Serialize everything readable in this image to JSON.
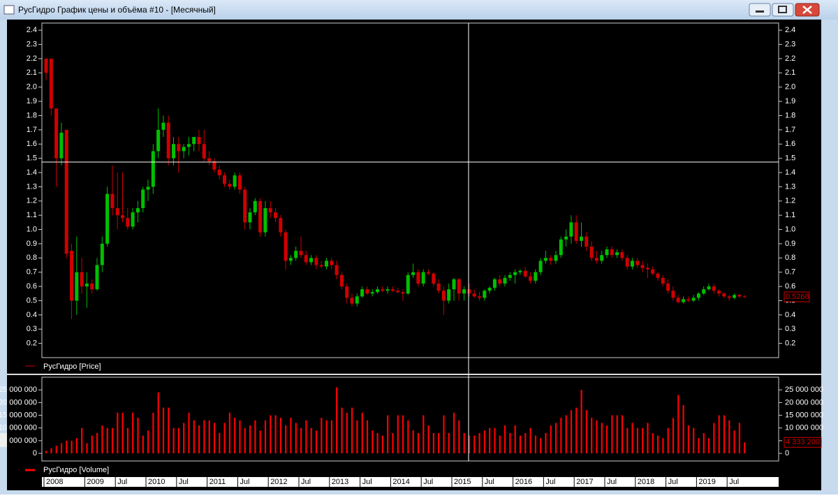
{
  "chart_data": {
    "type": "candlestick",
    "title": "РусГидро График цены и объёма #10 - [Месячный]",
    "price_legend": "РусГидро [Price]",
    "up_color": "#00c000",
    "down_color": "#d00000",
    "ylim": [
      0.1,
      2.45
    ],
    "yticks": [
      0.2,
      0.3,
      0.4,
      0.5,
      0.6,
      0.7,
      0.8,
      0.9,
      {
        "value": 1.0,
        "label": "1.0"
      },
      1.1,
      1.2,
      1.3,
      1.4,
      1.5,
      1.6,
      1.7,
      1.8,
      1.9,
      {
        "value": 2.0,
        "label": "2.0"
      },
      2.1,
      2.2,
      2.3,
      2.4
    ],
    "categories": [
      "2008",
      null,
      null,
      null,
      null,
      null,
      null,
      null,
      "2009",
      null,
      null,
      null,
      null,
      null,
      "Jul",
      null,
      null,
      null,
      null,
      null,
      "2010",
      null,
      null,
      null,
      null,
      null,
      "Jul",
      null,
      null,
      null,
      null,
      null,
      "2011",
      null,
      null,
      null,
      null,
      null,
      "Jul",
      null,
      null,
      null,
      null,
      null,
      "2012",
      null,
      null,
      null,
      null,
      null,
      "Jul",
      null,
      null,
      null,
      null,
      null,
      "2013",
      null,
      null,
      null,
      null,
      null,
      "Jul",
      null,
      null,
      null,
      null,
      null,
      "2014",
      null,
      null,
      null,
      null,
      null,
      "Jul",
      null,
      null,
      null,
      null,
      null,
      "2015",
      null,
      null,
      null,
      null,
      null,
      "Jul",
      null,
      null,
      null,
      null,
      null,
      "2016",
      null,
      null,
      null,
      null,
      null,
      "Jul",
      null,
      null,
      null,
      null,
      null,
      "2017",
      null,
      null,
      null,
      null,
      null,
      "Jul",
      null,
      null,
      null,
      null,
      null,
      "2018",
      null,
      null,
      null,
      null,
      null,
      "Jul",
      null,
      null,
      null,
      null,
      null,
      "2019",
      null,
      null,
      null,
      null,
      null,
      "Jul",
      null,
      null,
      null
    ],
    "ohlc": [
      [
        2.2,
        2.2,
        2.05,
        2.1
      ],
      [
        2.2,
        2.2,
        1.8,
        1.85
      ],
      [
        1.85,
        1.85,
        1.3,
        1.5
      ],
      [
        1.5,
        1.75,
        1.45,
        1.68
      ],
      [
        1.7,
        1.7,
        0.8,
        0.83
      ],
      [
        0.85,
        0.9,
        0.37,
        0.5
      ],
      [
        0.5,
        0.95,
        0.4,
        0.7
      ],
      [
        0.7,
        0.8,
        0.55,
        0.6
      ],
      [
        0.6,
        0.7,
        0.45,
        0.62
      ],
      [
        0.62,
        0.65,
        0.55,
        0.58
      ],
      [
        0.58,
        0.8,
        0.57,
        0.75
      ],
      [
        0.75,
        0.95,
        0.7,
        0.9
      ],
      [
        0.9,
        1.3,
        0.88,
        1.25
      ],
      [
        1.25,
        1.45,
        1.1,
        1.15
      ],
      [
        1.15,
        1.4,
        1.0,
        1.1
      ],
      [
        1.1,
        1.4,
        1.05,
        1.08
      ],
      [
        1.08,
        1.15,
        1.0,
        1.02
      ],
      [
        1.02,
        1.15,
        1.0,
        1.12
      ],
      [
        1.12,
        1.2,
        1.05,
        1.15
      ],
      [
        1.15,
        1.3,
        1.12,
        1.28
      ],
      [
        1.28,
        1.35,
        1.2,
        1.3
      ],
      [
        1.3,
        1.6,
        1.25,
        1.55
      ],
      [
        1.55,
        1.85,
        1.5,
        1.7
      ],
      [
        1.7,
        1.8,
        1.65,
        1.75
      ],
      [
        1.75,
        1.8,
        1.45,
        1.5
      ],
      [
        1.5,
        1.65,
        1.45,
        1.6
      ],
      [
        1.6,
        1.65,
        1.4,
        1.55
      ],
      [
        1.55,
        1.6,
        1.5,
        1.58
      ],
      [
        1.58,
        1.65,
        1.52,
        1.6
      ],
      [
        1.6,
        1.65,
        1.55,
        1.65
      ],
      [
        1.65,
        1.7,
        1.55,
        1.6
      ],
      [
        1.6,
        1.7,
        1.48,
        1.5
      ],
      [
        1.5,
        1.55,
        1.45,
        1.48
      ],
      [
        1.48,
        1.5,
        1.4,
        1.42
      ],
      [
        1.42,
        1.45,
        1.35,
        1.38
      ],
      [
        1.38,
        1.4,
        1.3,
        1.32
      ],
      [
        1.32,
        1.35,
        1.28,
        1.3
      ],
      [
        1.3,
        1.4,
        1.28,
        1.38
      ],
      [
        1.38,
        1.4,
        1.25,
        1.28
      ],
      [
        1.28,
        1.3,
        1.0,
        1.05
      ],
      [
        1.05,
        1.15,
        1.0,
        1.12
      ],
      [
        1.12,
        1.22,
        1.1,
        1.2
      ],
      [
        1.2,
        1.22,
        0.95,
        0.98
      ],
      [
        0.98,
        1.2,
        0.95,
        1.15
      ],
      [
        1.15,
        1.2,
        1.08,
        1.12
      ],
      [
        1.12,
        1.15,
        1.05,
        1.08
      ],
      [
        1.08,
        1.1,
        0.95,
        0.98
      ],
      [
        0.98,
        1.0,
        0.72,
        0.78
      ],
      [
        0.78,
        0.82,
        0.75,
        0.8
      ],
      [
        0.8,
        0.88,
        0.78,
        0.85
      ],
      [
        0.85,
        0.95,
        0.8,
        0.82
      ],
      [
        0.82,
        0.85,
        0.75,
        0.77
      ],
      [
        0.77,
        0.82,
        0.75,
        0.8
      ],
      [
        0.8,
        0.82,
        0.72,
        0.75
      ],
      [
        0.75,
        0.78,
        0.73,
        0.74
      ],
      [
        0.74,
        0.8,
        0.72,
        0.78
      ],
      [
        0.78,
        0.8,
        0.72,
        0.75
      ],
      [
        0.75,
        0.78,
        0.65,
        0.68
      ],
      [
        0.68,
        0.7,
        0.58,
        0.6
      ],
      [
        0.6,
        0.62,
        0.48,
        0.52
      ],
      [
        0.52,
        0.55,
        0.46,
        0.48
      ],
      [
        0.48,
        0.55,
        0.46,
        0.53
      ],
      [
        0.53,
        0.6,
        0.52,
        0.58
      ],
      [
        0.58,
        0.6,
        0.54,
        0.55
      ],
      [
        0.55,
        0.58,
        0.53,
        0.56
      ],
      [
        0.56,
        0.6,
        0.55,
        0.58
      ],
      [
        0.58,
        0.6,
        0.56,
        0.57
      ],
      [
        0.57,
        0.6,
        0.55,
        0.58
      ],
      [
        0.58,
        0.6,
        0.56,
        0.57
      ],
      [
        0.57,
        0.59,
        0.55,
        0.56
      ],
      [
        0.56,
        0.58,
        0.5,
        0.55
      ],
      [
        0.55,
        0.7,
        0.54,
        0.68
      ],
      [
        0.68,
        0.76,
        0.66,
        0.7
      ],
      [
        0.7,
        0.72,
        0.6,
        0.62
      ],
      [
        0.62,
        0.72,
        0.6,
        0.7
      ],
      [
        0.7,
        0.72,
        0.68,
        0.69
      ],
      [
        0.69,
        0.7,
        0.6,
        0.62
      ],
      [
        0.62,
        0.65,
        0.55,
        0.57
      ],
      [
        0.57,
        0.6,
        0.4,
        0.5
      ],
      [
        0.5,
        0.62,
        0.48,
        0.58
      ],
      [
        0.58,
        0.66,
        0.5,
        0.65
      ],
      [
        0.65,
        0.66,
        0.5,
        0.55
      ],
      [
        0.55,
        0.6,
        0.5,
        0.58
      ],
      [
        0.58,
        0.62,
        0.53,
        0.55
      ],
      [
        0.55,
        0.58,
        0.52,
        0.53
      ],
      [
        0.53,
        0.56,
        0.5,
        0.52
      ],
      [
        0.52,
        0.58,
        0.5,
        0.57
      ],
      [
        0.57,
        0.6,
        0.55,
        0.59
      ],
      [
        0.59,
        0.66,
        0.57,
        0.65
      ],
      [
        0.65,
        0.68,
        0.6,
        0.62
      ],
      [
        0.62,
        0.68,
        0.6,
        0.66
      ],
      [
        0.66,
        0.7,
        0.64,
        0.68
      ],
      [
        0.68,
        0.72,
        0.62,
        0.7
      ],
      [
        0.7,
        0.72,
        0.68,
        0.71
      ],
      [
        0.71,
        0.74,
        0.66,
        0.67
      ],
      [
        0.67,
        0.7,
        0.62,
        0.64
      ],
      [
        0.64,
        0.72,
        0.62,
        0.7
      ],
      [
        0.7,
        0.8,
        0.68,
        0.78
      ],
      [
        0.78,
        0.85,
        0.76,
        0.8
      ],
      [
        0.8,
        0.82,
        0.75,
        0.78
      ],
      [
        0.78,
        0.85,
        0.76,
        0.82
      ],
      [
        0.82,
        0.95,
        0.8,
        0.93
      ],
      [
        0.93,
        1.0,
        0.88,
        0.95
      ],
      [
        0.95,
        1.1,
        0.9,
        1.05
      ],
      [
        1.05,
        1.1,
        0.9,
        0.92
      ],
      [
        0.92,
        1.05,
        0.88,
        0.95
      ],
      [
        0.95,
        0.98,
        0.85,
        0.88
      ],
      [
        0.88,
        0.92,
        0.78,
        0.8
      ],
      [
        0.8,
        0.85,
        0.76,
        0.78
      ],
      [
        0.78,
        0.85,
        0.76,
        0.82
      ],
      [
        0.82,
        0.88,
        0.8,
        0.86
      ],
      [
        0.86,
        0.88,
        0.8,
        0.82
      ],
      [
        0.82,
        0.86,
        0.8,
        0.84
      ],
      [
        0.84,
        0.86,
        0.78,
        0.8
      ],
      [
        0.8,
        0.82,
        0.72,
        0.74
      ],
      [
        0.74,
        0.8,
        0.72,
        0.78
      ],
      [
        0.78,
        0.8,
        0.73,
        0.75
      ],
      [
        0.75,
        0.78,
        0.7,
        0.73
      ],
      [
        0.73,
        0.76,
        0.66,
        0.72
      ],
      [
        0.72,
        0.74,
        0.68,
        0.69
      ],
      [
        0.69,
        0.7,
        0.64,
        0.66
      ],
      [
        0.66,
        0.68,
        0.6,
        0.62
      ],
      [
        0.62,
        0.65,
        0.55,
        0.57
      ],
      [
        0.57,
        0.6,
        0.5,
        0.52
      ],
      [
        0.52,
        0.54,
        0.48,
        0.49
      ],
      [
        0.49,
        0.53,
        0.48,
        0.51
      ],
      [
        0.51,
        0.53,
        0.49,
        0.5
      ],
      [
        0.5,
        0.54,
        0.49,
        0.52
      ],
      [
        0.52,
        0.56,
        0.5,
        0.55
      ],
      [
        0.55,
        0.6,
        0.54,
        0.58
      ],
      [
        0.58,
        0.62,
        0.57,
        0.6
      ],
      [
        0.6,
        0.62,
        0.55,
        0.57
      ],
      [
        0.57,
        0.58,
        0.53,
        0.55
      ],
      [
        0.55,
        0.56,
        0.52,
        0.53
      ],
      [
        0.53,
        0.54,
        0.5,
        0.52
      ],
      [
        0.52,
        0.55,
        0.51,
        0.54
      ],
      [
        0.54,
        0.55,
        0.52,
        0.53
      ],
      [
        0.53,
        0.54,
        0.52,
        0.5268
      ]
    ],
    "volume": {
      "legend": "РусГидро [Volume]",
      "color": "#ff0000",
      "ylim": [
        -3000000,
        30000000
      ],
      "yticks": [
        0,
        {
          "value": 5000000,
          "label": "5 000 000"
        },
        {
          "value": 10000000,
          "label": "10 000 000"
        },
        {
          "value": 15000000,
          "label": "15 000 000"
        },
        {
          "value": 20000000,
          "label": "20 000 000"
        },
        {
          "value": 25000000,
          "label": "25 000 000"
        }
      ],
      "values": [
        1000000,
        2000000,
        3000000,
        4000000,
        5000000,
        5000000,
        6000000,
        10000000,
        4000000,
        7000000,
        8000000,
        11000000,
        10000000,
        10000000,
        16000000,
        16000000,
        10000000,
        16000000,
        14000000,
        7000000,
        9000000,
        16000000,
        24000000,
        18000000,
        18000000,
        10000000,
        10000000,
        12000000,
        16000000,
        13000000,
        11000000,
        13000000,
        13000000,
        12000000,
        8000000,
        12000000,
        16000000,
        14000000,
        13000000,
        10000000,
        11000000,
        13000000,
        9000000,
        13000000,
        15000000,
        15000000,
        14000000,
        11000000,
        14000000,
        12000000,
        10000000,
        13000000,
        10000000,
        9000000,
        14000000,
        13000000,
        13000000,
        26000000,
        18000000,
        16000000,
        18000000,
        13000000,
        16000000,
        13000000,
        9000000,
        8000000,
        7000000,
        15000000,
        8000000,
        15000000,
        15000000,
        13000000,
        9000000,
        8000000,
        15000000,
        11000000,
        8000000,
        8000000,
        15000000,
        8000000,
        16000000,
        13000000,
        8000000,
        7000000,
        7000000,
        8000000,
        9000000,
        10000000,
        10000000,
        7000000,
        11000000,
        8000000,
        11000000,
        7000000,
        8000000,
        10000000,
        7000000,
        6000000,
        8000000,
        11000000,
        12000000,
        14000000,
        15000000,
        17000000,
        18000000,
        25000000,
        17000000,
        14000000,
        13000000,
        12000000,
        11000000,
        15000000,
        15000000,
        15000000,
        10000000,
        12000000,
        10000000,
        10000000,
        12000000,
        8000000,
        7000000,
        6000000,
        10000000,
        14000000,
        23000000,
        19000000,
        11000000,
        10000000,
        6000000,
        8000000,
        6000000,
        12000000,
        15000000,
        15000000,
        13000000,
        9000000,
        12000000,
        4333200
      ],
      "last_label": "4 333 200"
    }
  }
}
